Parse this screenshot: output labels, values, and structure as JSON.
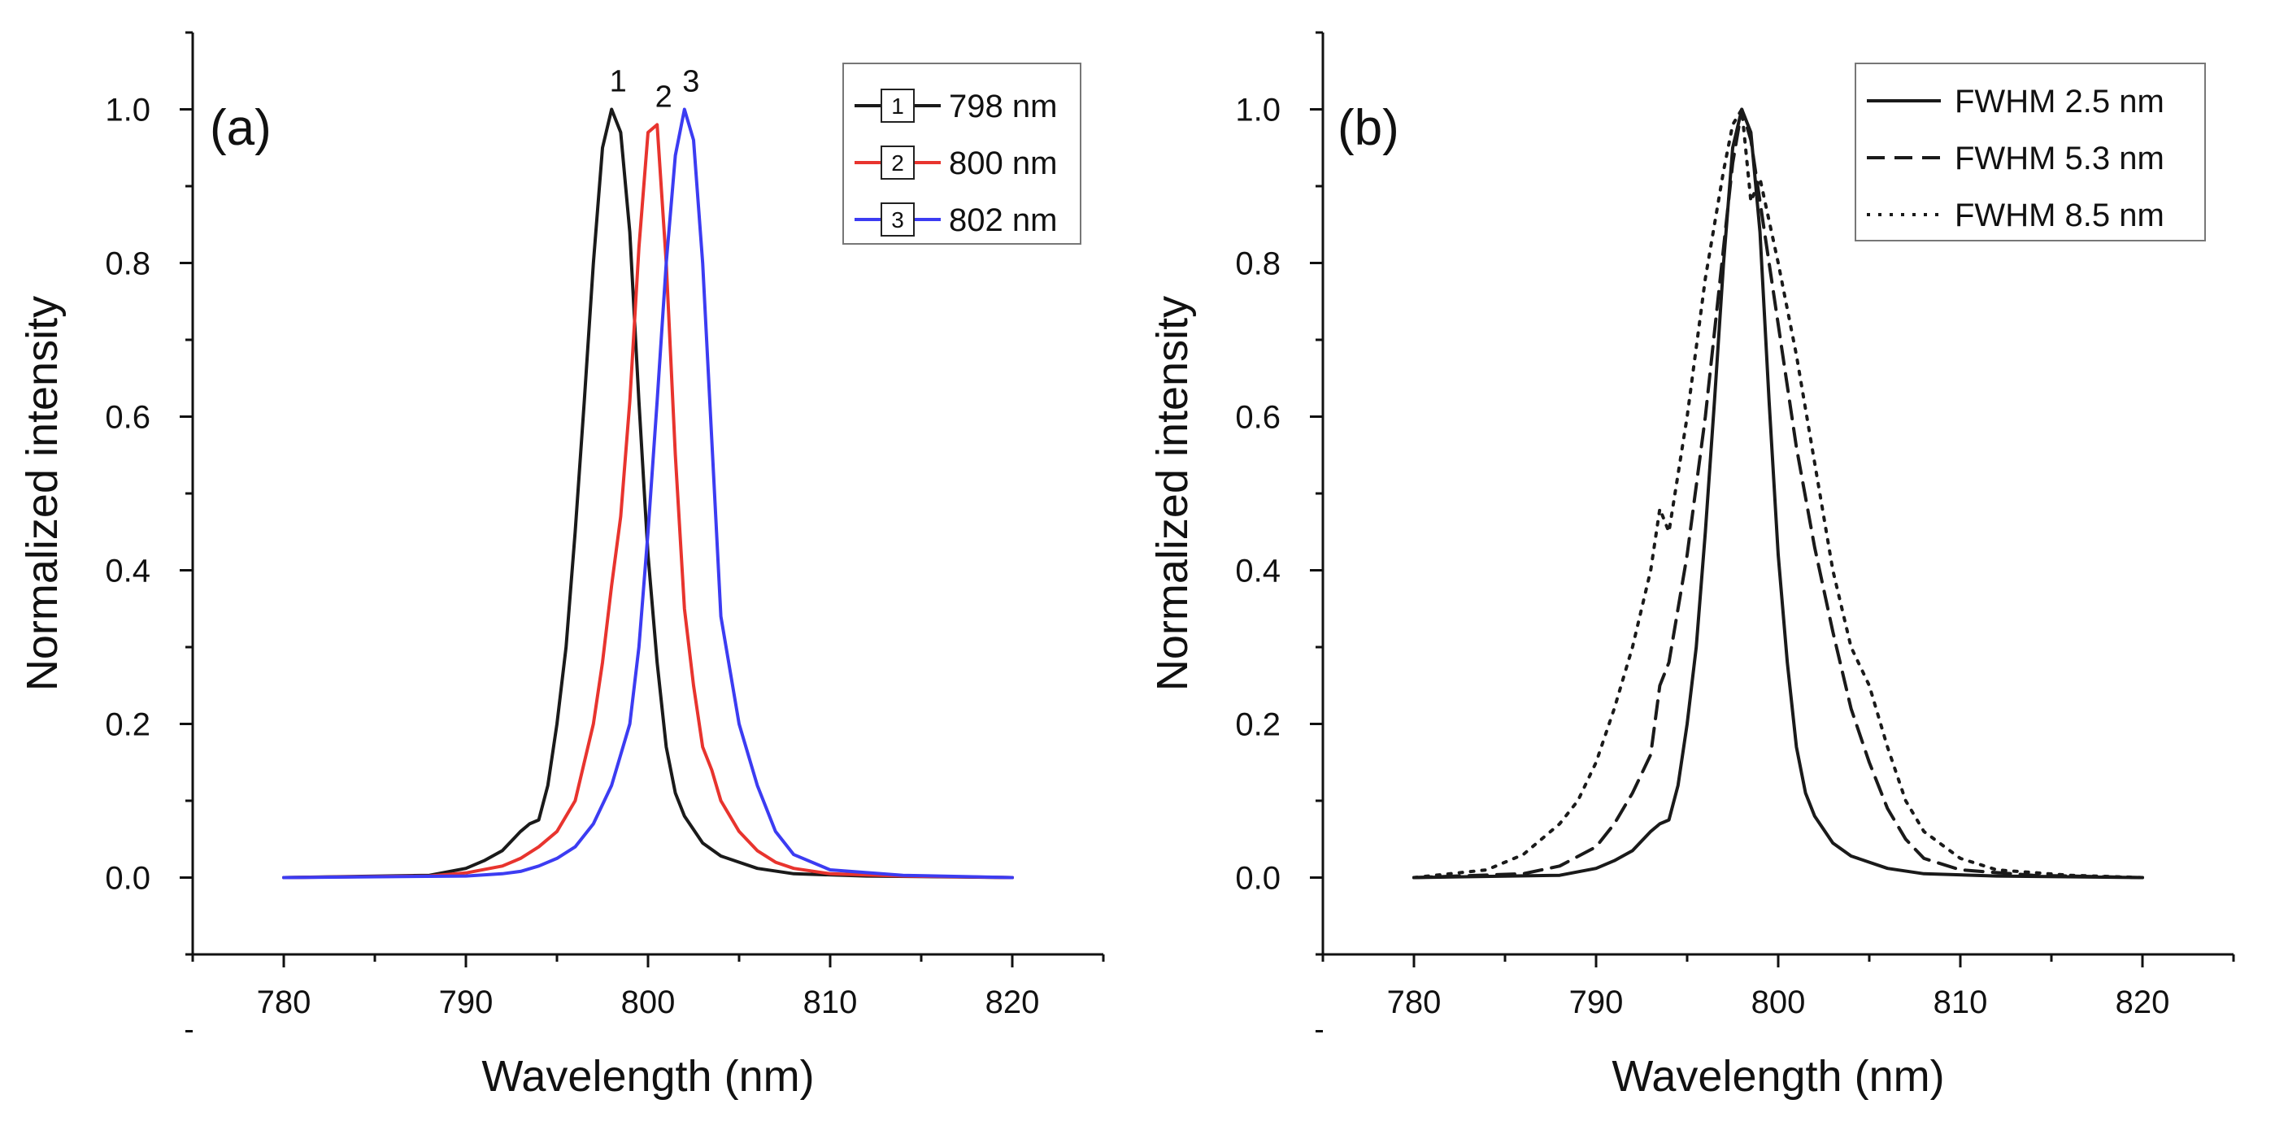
{
  "chart_data": [
    {
      "type": "line",
      "panel_label": "(a)",
      "xlabel": "Wavelength (nm)",
      "ylabel": "Normalized intensity",
      "xlim": [
        775,
        825
      ],
      "ylim": [
        -0.1,
        1.1
      ],
      "xticks": [
        780,
        790,
        800,
        810,
        820
      ],
      "xtick_labels": [
        "780",
        "790",
        "800",
        "810",
        "820"
      ],
      "yticks": [
        0.0,
        0.2,
        0.4,
        0.6,
        0.8,
        1.0
      ],
      "ytick_labels": [
        "0.0",
        "0.2",
        "0.4",
        "0.6",
        "0.8",
        "1.0"
      ],
      "legend_position": "top-right",
      "series": [
        {
          "name": "798 nm",
          "marker": "1",
          "peak_label": "1",
          "color": "#1a1a1a",
          "style": "solid",
          "x": [
            780,
            788,
            790,
            791,
            792,
            793,
            793.5,
            794,
            794.5,
            795,
            795.5,
            796,
            796.5,
            797,
            797.5,
            798,
            798.5,
            799,
            799.5,
            800,
            800.5,
            801,
            801.5,
            802,
            803,
            804,
            805,
            806,
            808,
            812,
            820
          ],
          "y": [
            0.0,
            0.003,
            0.012,
            0.022,
            0.035,
            0.06,
            0.07,
            0.075,
            0.12,
            0.2,
            0.3,
            0.45,
            0.62,
            0.8,
            0.95,
            1.0,
            0.97,
            0.84,
            0.62,
            0.42,
            0.28,
            0.17,
            0.11,
            0.08,
            0.045,
            0.028,
            0.02,
            0.012,
            0.005,
            0.002,
            0.0
          ]
        },
        {
          "name": "800 nm",
          "marker": "2",
          "peak_label": "2",
          "color": "#e8342e",
          "style": "solid",
          "x": [
            780,
            788,
            790,
            792,
            793,
            794,
            795,
            796,
            797,
            797.5,
            798,
            798.5,
            799,
            799.5,
            800,
            800.5,
            801,
            801.5,
            802,
            802.5,
            803,
            803.5,
            804,
            805,
            806,
            807,
            808,
            810,
            814,
            820
          ],
          "y": [
            0.0,
            0.002,
            0.006,
            0.015,
            0.025,
            0.04,
            0.06,
            0.1,
            0.2,
            0.28,
            0.38,
            0.47,
            0.62,
            0.82,
            0.97,
            0.98,
            0.8,
            0.55,
            0.35,
            0.25,
            0.17,
            0.14,
            0.1,
            0.06,
            0.035,
            0.02,
            0.012,
            0.005,
            0.002,
            0.0
          ]
        },
        {
          "name": "802 nm",
          "marker": "3",
          "peak_label": "3",
          "color": "#3c3cf2",
          "style": "solid",
          "x": [
            780,
            790,
            792,
            793,
            794,
            795,
            796,
            797,
            798,
            798.5,
            799,
            799.5,
            800,
            800.5,
            801,
            801.5,
            802,
            802.5,
            803,
            803.5,
            804,
            805,
            806,
            807,
            808,
            810,
            814,
            820
          ],
          "y": [
            0.0,
            0.002,
            0.005,
            0.008,
            0.015,
            0.025,
            0.04,
            0.07,
            0.12,
            0.16,
            0.2,
            0.3,
            0.45,
            0.62,
            0.8,
            0.94,
            1.0,
            0.96,
            0.8,
            0.57,
            0.34,
            0.2,
            0.12,
            0.06,
            0.03,
            0.01,
            0.003,
            0.0
          ]
        }
      ]
    },
    {
      "type": "line",
      "panel_label": "(b)",
      "xlabel": "Wavelength (nm)",
      "ylabel": "Normalized intensity",
      "xlim": [
        775,
        825
      ],
      "ylim": [
        -0.1,
        1.1
      ],
      "xticks": [
        780,
        790,
        800,
        810,
        820
      ],
      "xtick_labels": [
        "780",
        "790",
        "800",
        "810",
        "820"
      ],
      "yticks": [
        0.0,
        0.2,
        0.4,
        0.6,
        0.8,
        1.0
      ],
      "ytick_labels": [
        "0.0",
        "0.2",
        "0.4",
        "0.6",
        "0.8",
        "1.0"
      ],
      "legend_position": "top-right",
      "series": [
        {
          "name": "FWHM 2.5 nm",
          "color": "#1a1a1a",
          "style": "solid",
          "x": [
            780,
            788,
            790,
            791,
            792,
            793,
            793.5,
            794,
            794.5,
            795,
            795.5,
            796,
            796.5,
            797,
            797.5,
            798,
            798.5,
            799,
            799.5,
            800,
            800.5,
            801,
            801.5,
            802,
            803,
            804,
            805,
            806,
            808,
            812,
            820
          ],
          "y": [
            0.0,
            0.003,
            0.012,
            0.022,
            0.035,
            0.06,
            0.07,
            0.075,
            0.12,
            0.2,
            0.3,
            0.45,
            0.62,
            0.8,
            0.95,
            1.0,
            0.97,
            0.84,
            0.62,
            0.42,
            0.28,
            0.17,
            0.11,
            0.08,
            0.045,
            0.028,
            0.02,
            0.012,
            0.005,
            0.002,
            0.0
          ]
        },
        {
          "name": "FWHM 5.3 nm",
          "color": "#1a1a1a",
          "style": "dashed",
          "x": [
            780,
            786,
            788,
            790,
            791,
            792,
            793,
            793.5,
            794,
            795,
            796,
            797,
            797.5,
            798,
            798.5,
            799,
            800,
            801,
            802,
            803,
            804,
            805,
            806,
            807,
            808,
            810,
            814,
            820
          ],
          "y": [
            0.0,
            0.005,
            0.015,
            0.04,
            0.07,
            0.11,
            0.16,
            0.25,
            0.28,
            0.42,
            0.6,
            0.82,
            0.93,
            1.0,
            0.96,
            0.88,
            0.72,
            0.56,
            0.43,
            0.32,
            0.22,
            0.15,
            0.09,
            0.05,
            0.025,
            0.01,
            0.003,
            0.0
          ]
        },
        {
          "name": "FWHM 8.5 nm",
          "color": "#1a1a1a",
          "style": "dotted",
          "x": [
            780,
            784,
            786,
            788,
            789,
            790,
            791,
            792,
            793,
            793.5,
            794,
            795,
            796,
            797,
            797.5,
            798,
            798.5,
            799,
            800,
            801,
            802,
            803,
            804,
            805,
            806,
            807,
            808,
            810,
            812,
            816,
            820
          ],
          "y": [
            0.0,
            0.01,
            0.03,
            0.07,
            0.1,
            0.15,
            0.22,
            0.3,
            0.4,
            0.48,
            0.45,
            0.6,
            0.78,
            0.92,
            0.98,
            1.0,
            0.88,
            0.91,
            0.8,
            0.68,
            0.54,
            0.4,
            0.3,
            0.25,
            0.17,
            0.1,
            0.06,
            0.025,
            0.01,
            0.003,
            0.0
          ]
        }
      ]
    }
  ]
}
